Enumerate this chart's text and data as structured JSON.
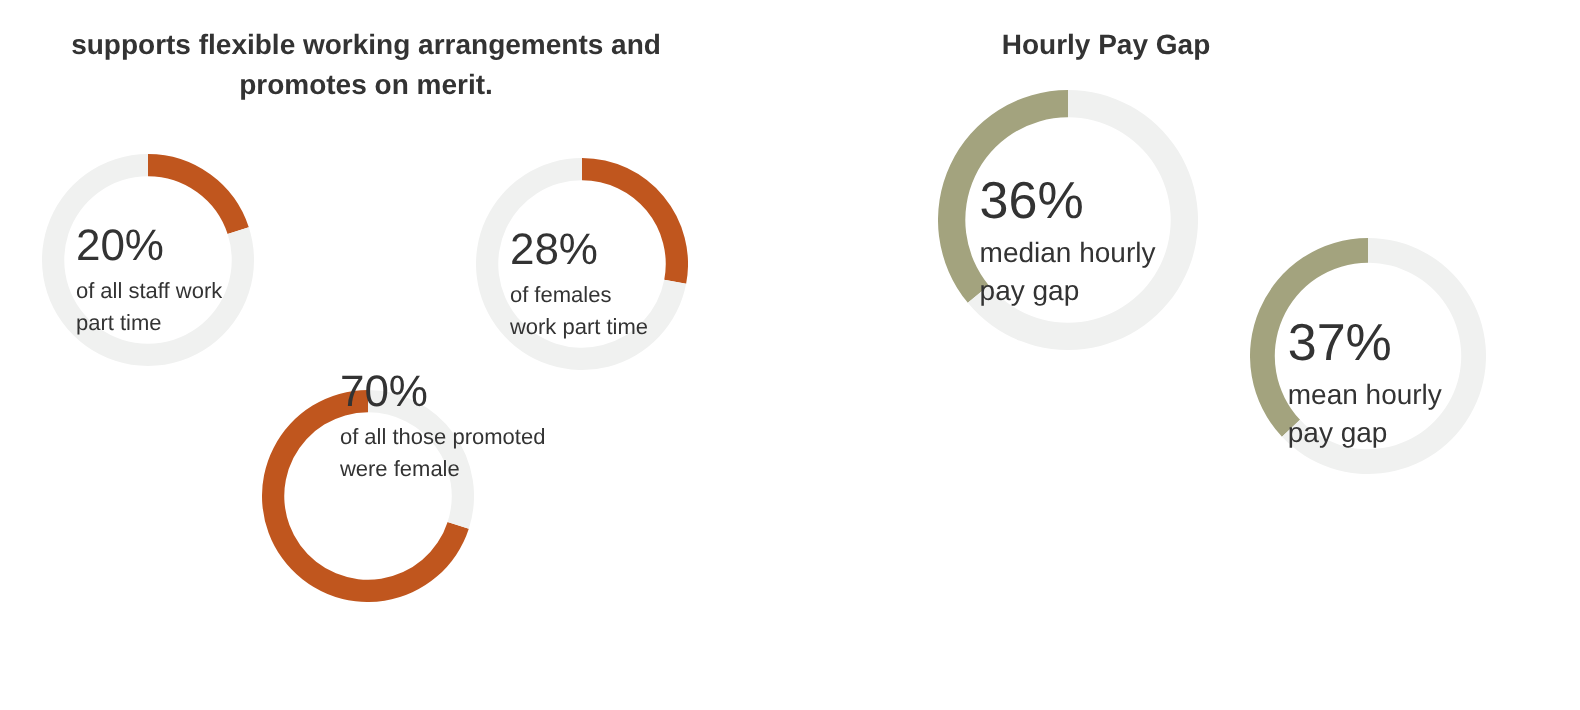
{
  "chart_data": [
    {
      "type": "donut",
      "title": "supports flexible working arrangements and promotes on merit.",
      "categories": [
        null,
        null
      ],
      "values": [
        20,
        80
      ],
      "colors": [
        "#c0561e",
        "#f0f1f0"
      ],
      "annotations": [
        "20%",
        "of all staff work part time"
      ]
    },
    {
      "type": "donut",
      "categories": [
        null,
        null
      ],
      "values": [
        28,
        72
      ],
      "colors": [
        "#c0561e",
        "#f0f1f0"
      ],
      "annotations": [
        "28%",
        "of females work part time"
      ]
    },
    {
      "type": "donut",
      "categories": [
        null,
        null
      ],
      "values": [
        70,
        30
      ],
      "colors": [
        "#c0561e",
        "#f0f1f0"
      ],
      "annotations": [
        "70%",
        "of all those promoted were female"
      ]
    },
    {
      "type": "donut",
      "title": "Hourly Pay Gap",
      "categories": [
        null,
        null
      ],
      "values": [
        36,
        64
      ],
      "colors": [
        "#a3a37e",
        "#f0f1f0"
      ],
      "annotations": [
        "36%",
        "median hourly pay gap"
      ]
    },
    {
      "type": "donut",
      "categories": [
        null,
        null
      ],
      "values": [
        37,
        63
      ],
      "colors": [
        "#a3a37e",
        "#f0f1f0"
      ],
      "annotations": [
        "37%",
        "mean hourly pay gap"
      ]
    }
  ]
}
